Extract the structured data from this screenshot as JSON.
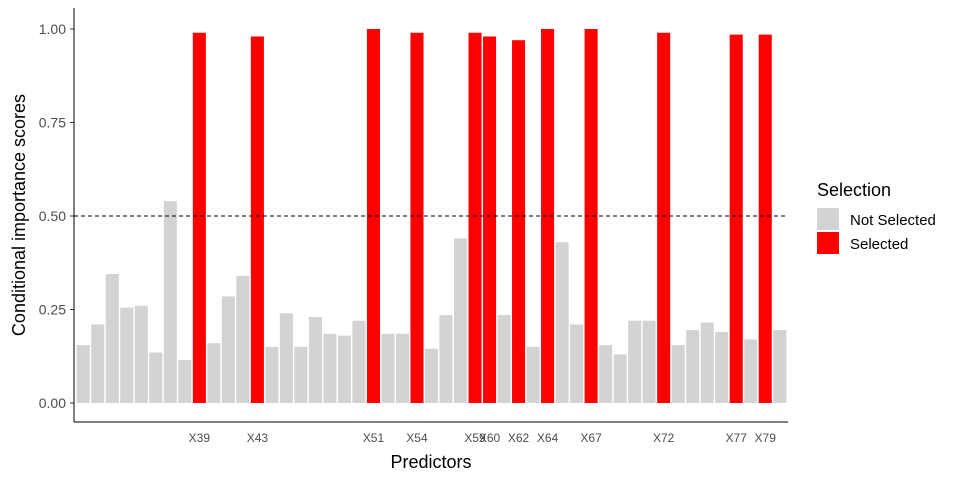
{
  "chart_data": {
    "type": "bar",
    "xlabel": "Predictors",
    "ylabel": "Conditional importance scores",
    "ylim": [
      0,
      1.0
    ],
    "yticks": [
      "0.00",
      "0.25",
      "0.50",
      "0.75",
      "1.00"
    ],
    "threshold": 0.5,
    "grid": false,
    "legend": {
      "title": "Selection",
      "position": "right",
      "entries": [
        {
          "label": "Not Selected",
          "color": "#d3d3d3"
        },
        {
          "label": "Selected",
          "color": "#ff0000"
        }
      ]
    },
    "bars": [
      {
        "value": 0.155,
        "label": "",
        "selected": false
      },
      {
        "value": 0.21,
        "label": "",
        "selected": false
      },
      {
        "value": 0.345,
        "label": "",
        "selected": false
      },
      {
        "value": 0.255,
        "label": "",
        "selected": false
      },
      {
        "value": 0.26,
        "label": "",
        "selected": false
      },
      {
        "value": 0.135,
        "label": "",
        "selected": false
      },
      {
        "value": 0.54,
        "label": "",
        "selected": false
      },
      {
        "value": 0.115,
        "label": "",
        "selected": false
      },
      {
        "value": 0.99,
        "label": "X39",
        "selected": true
      },
      {
        "value": 0.16,
        "label": "",
        "selected": false
      },
      {
        "value": 0.285,
        "label": "",
        "selected": false
      },
      {
        "value": 0.34,
        "label": "",
        "selected": false
      },
      {
        "value": 0.98,
        "label": "X43",
        "selected": true
      },
      {
        "value": 0.15,
        "label": "",
        "selected": false
      },
      {
        "value": 0.24,
        "label": "",
        "selected": false
      },
      {
        "value": 0.15,
        "label": "",
        "selected": false
      },
      {
        "value": 0.23,
        "label": "",
        "selected": false
      },
      {
        "value": 0.185,
        "label": "",
        "selected": false
      },
      {
        "value": 0.18,
        "label": "",
        "selected": false
      },
      {
        "value": 0.22,
        "label": "",
        "selected": false
      },
      {
        "value": 1.0,
        "label": "X51",
        "selected": true
      },
      {
        "value": 0.185,
        "label": "",
        "selected": false
      },
      {
        "value": 0.185,
        "label": "",
        "selected": false
      },
      {
        "value": 0.99,
        "label": "X54",
        "selected": true
      },
      {
        "value": 0.145,
        "label": "",
        "selected": false
      },
      {
        "value": 0.235,
        "label": "",
        "selected": false
      },
      {
        "value": 0.44,
        "label": "",
        "selected": false
      },
      {
        "value": 0.99,
        "label": "X59",
        "selected": true
      },
      {
        "value": 0.98,
        "label": "X60",
        "selected": true
      },
      {
        "value": 0.235,
        "label": "",
        "selected": false
      },
      {
        "value": 0.97,
        "label": "X62",
        "selected": true
      },
      {
        "value": 0.15,
        "label": "",
        "selected": false
      },
      {
        "value": 1.0,
        "label": "X64",
        "selected": true
      },
      {
        "value": 0.43,
        "label": "",
        "selected": false
      },
      {
        "value": 0.21,
        "label": "",
        "selected": false
      },
      {
        "value": 1.0,
        "label": "X67",
        "selected": true
      },
      {
        "value": 0.155,
        "label": "",
        "selected": false
      },
      {
        "value": 0.13,
        "label": "",
        "selected": false
      },
      {
        "value": 0.22,
        "label": "",
        "selected": false
      },
      {
        "value": 0.22,
        "label": "",
        "selected": false
      },
      {
        "value": 0.99,
        "label": "X72",
        "selected": true
      },
      {
        "value": 0.155,
        "label": "",
        "selected": false
      },
      {
        "value": 0.195,
        "label": "",
        "selected": false
      },
      {
        "value": 0.215,
        "label": "",
        "selected": false
      },
      {
        "value": 0.19,
        "label": "",
        "selected": false
      },
      {
        "value": 0.985,
        "label": "X77",
        "selected": true
      },
      {
        "value": 0.17,
        "label": "",
        "selected": false
      },
      {
        "value": 0.985,
        "label": "X79",
        "selected": true
      },
      {
        "value": 0.195,
        "label": "",
        "selected": false
      }
    ]
  }
}
